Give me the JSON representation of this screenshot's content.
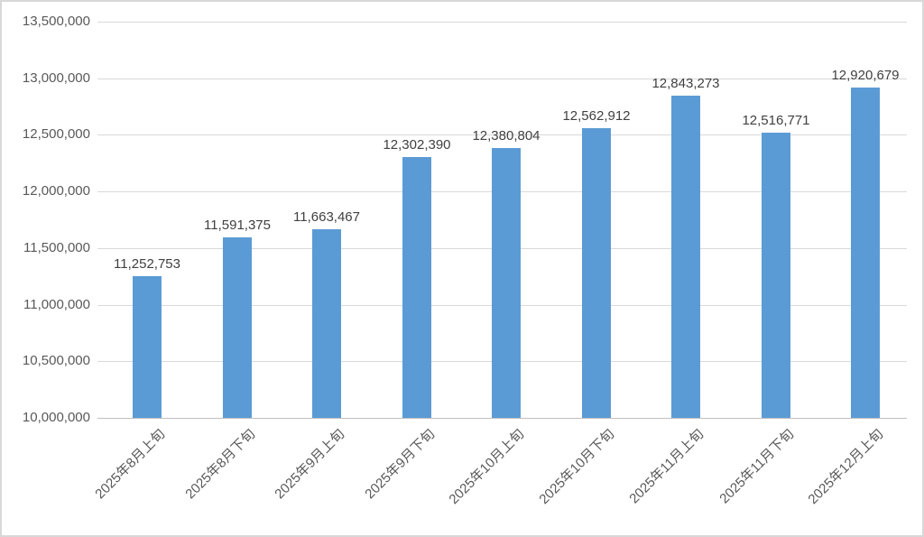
{
  "chart_data": {
    "type": "bar",
    "title": "",
    "xlabel": "",
    "ylabel": "",
    "categories": [
      "2025年8月上旬",
      "2025年8月下旬",
      "2025年9月上旬",
      "2025年9月下旬",
      "2025年10月上旬",
      "2025年10月下旬",
      "2025年11月上旬",
      "2025年11月下旬",
      "2025年12月上旬"
    ],
    "values": [
      11252753,
      11591375,
      11663467,
      12302390,
      12380804,
      12562912,
      12843273,
      12516771,
      12920679
    ],
    "value_labels": [
      "11,252,753",
      "11,591,375",
      "11,663,467",
      "12,302,390",
      "12,380,804",
      "12,562,912",
      "12,843,273",
      "12,516,771",
      "12,920,679"
    ],
    "y_tick_labels": [
      "10,000,000",
      "10,500,000",
      "11,000,000",
      "11,500,000",
      "12,000,000",
      "12,500,000",
      "13,000,000",
      "13,500,000"
    ],
    "ylim": [
      10000000,
      13500000
    ],
    "y_tick_step": 500000,
    "grid": true,
    "legend": "none",
    "colors": {
      "bar": "#5B9BD5",
      "gridline": "#D9D9D9",
      "axis_line": "#BFBFBF",
      "axis_text": "#595959",
      "value_label_text": "#404040",
      "border": "#D8D8D8",
      "background": "#FFFFFF"
    }
  }
}
